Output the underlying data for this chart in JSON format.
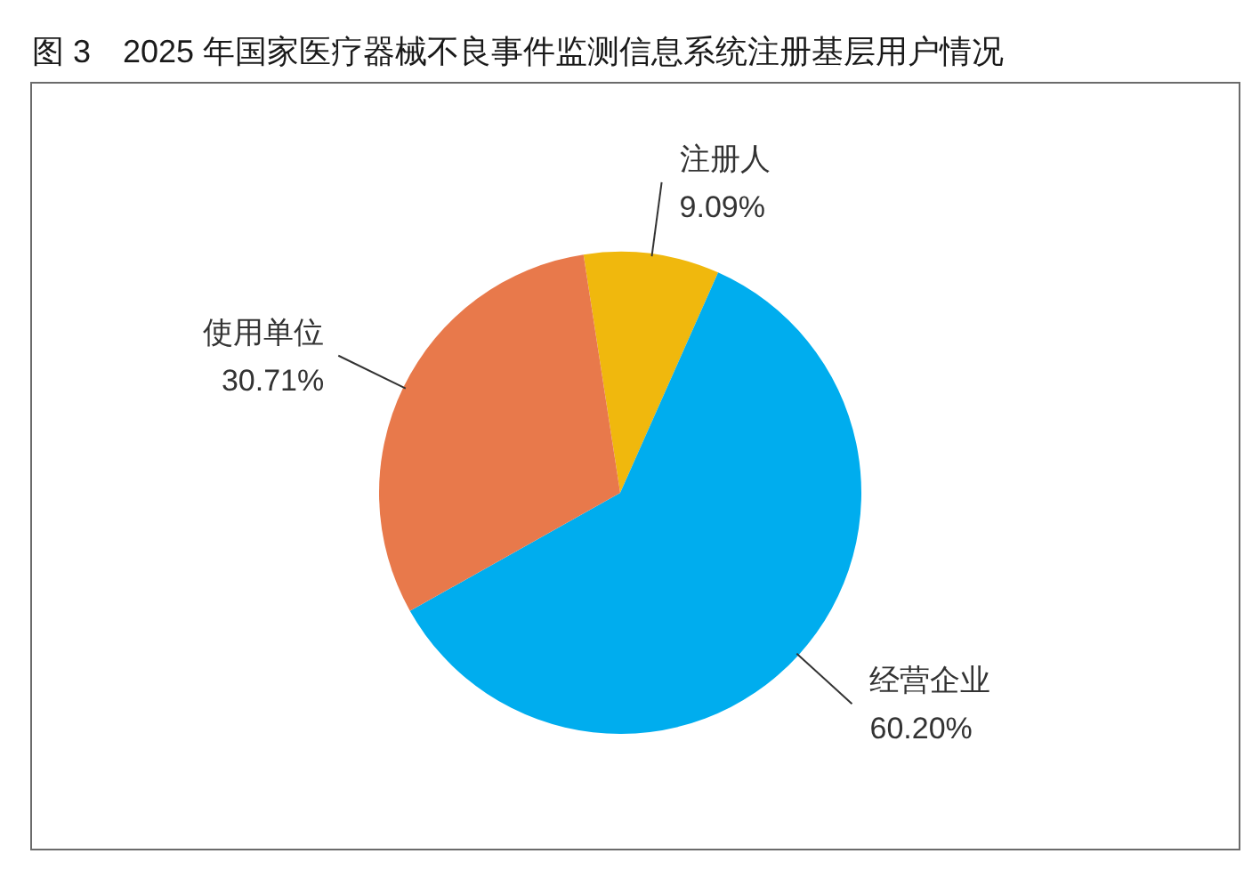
{
  "chart_data": {
    "type": "pie",
    "title": "图 3　2025 年国家医疗器械不良事件监测信息系统注册基层用户情况",
    "categories": [
      "注册人",
      "经营企业",
      "使用单位"
    ],
    "values": [
      9.09,
      60.2,
      30.71
    ],
    "colors": [
      "#f0b80d",
      "#00adee",
      "#e8794b"
    ],
    "value_labels": [
      "9.09%",
      "60.20%",
      "30.71%"
    ]
  }
}
